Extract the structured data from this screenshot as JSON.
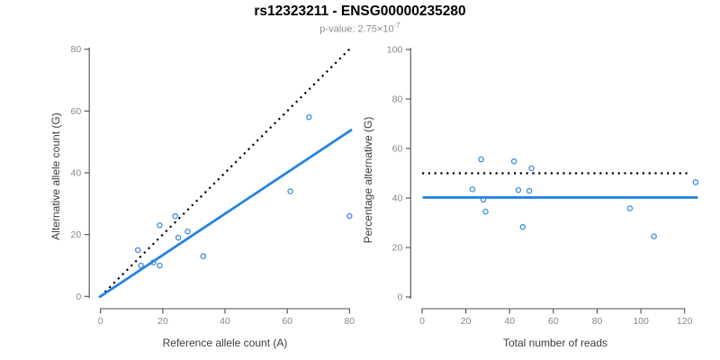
{
  "header": {
    "title": "rs12323211 - ENSG00000235280",
    "subtitle_text": "p-value: 2.75×10",
    "subtitle_exponent": "-7"
  },
  "colors": {
    "accent_blue": "#2583E2",
    "point_blue": "#3D8CD9",
    "identity_black": "#000000",
    "axis_line": "#4D4D4D",
    "tick_label": "#888888",
    "axis_title": "#3C3C3C",
    "subtitle_gray": "#8E8E8E",
    "background": "#FFFFFF"
  },
  "chart_data": [
    {
      "id": "allele-counts-scatter",
      "type": "scatter",
      "title": "",
      "xlabel": "Reference allele count (A)",
      "ylabel": "Alternative allele count (G)",
      "xlim": [
        0,
        80
      ],
      "ylim": [
        0,
        80
      ],
      "xticks": [
        0,
        20,
        40,
        60,
        80
      ],
      "yticks": [
        0,
        20,
        40,
        60,
        80
      ],
      "grid": false,
      "legend": false,
      "points": [
        [
          12,
          15
        ],
        [
          13,
          10
        ],
        [
          17,
          11
        ],
        [
          19,
          10
        ],
        [
          19,
          23
        ],
        [
          24,
          26
        ],
        [
          25,
          19
        ],
        [
          28,
          21
        ],
        [
          33,
          13
        ],
        [
          61,
          34
        ],
        [
          67,
          58
        ],
        [
          80,
          26
        ]
      ],
      "lines": [
        {
          "name": "identity-line",
          "style": "dotted",
          "color_key": "identity_black",
          "x": [
            0,
            80
          ],
          "y": [
            0,
            80
          ]
        },
        {
          "name": "regression-line",
          "style": "solid",
          "color_key": "accent_blue",
          "x": [
            -0.5,
            80.8
          ],
          "y": [
            -0.33,
            54.0
          ]
        }
      ]
    },
    {
      "id": "percentage-scatter",
      "type": "scatter",
      "title": "",
      "xlabel": "Total number of reads",
      "ylabel": "Percentage alternative (G)",
      "xlim": [
        0,
        120
      ],
      "ylim": [
        0,
        100
      ],
      "xticks": [
        0,
        20,
        40,
        60,
        80,
        100,
        120
      ],
      "yticks": [
        0,
        20,
        40,
        60,
        80,
        100
      ],
      "grid": false,
      "legend": false,
      "points": [
        [
          23,
          43.5
        ],
        [
          27,
          55.6
        ],
        [
          28,
          39.3
        ],
        [
          29,
          34.5
        ],
        [
          42,
          54.8
        ],
        [
          44,
          43.2
        ],
        [
          46,
          28.3
        ],
        [
          49,
          42.9
        ],
        [
          50,
          52.0
        ],
        [
          95,
          35.8
        ],
        [
          106,
          24.5
        ],
        [
          125,
          46.4
        ]
      ],
      "lines": [
        {
          "name": "expected-percentage-line",
          "style": "dotted",
          "color_key": "identity_black",
          "x": [
            0,
            123
          ],
          "y": [
            50,
            50
          ]
        },
        {
          "name": "mean-percentage-line",
          "style": "solid",
          "color_key": "accent_blue",
          "x": [
            0.3,
            126
          ],
          "y": [
            40.2,
            40.2
          ]
        }
      ]
    }
  ]
}
